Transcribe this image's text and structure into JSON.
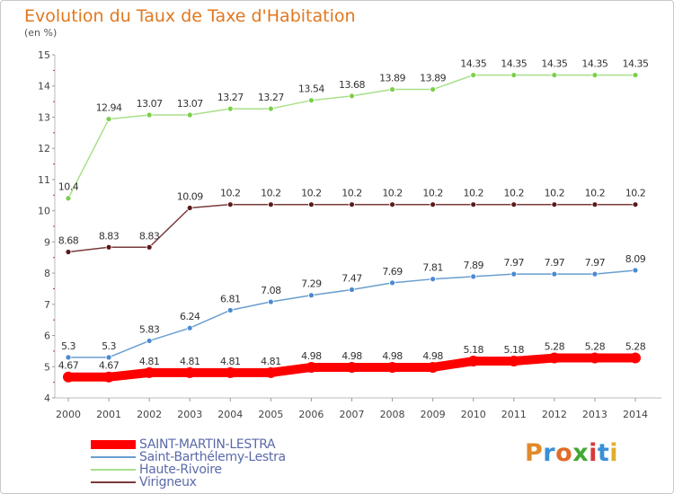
{
  "title": "Evolution du Taux de Taxe d'Habitation",
  "unit_label": "(en %)",
  "logo": {
    "text": "Proxiti",
    "colors": [
      "#e08a2a",
      "#3a8fd8",
      "#e06c2a",
      "#43a832",
      "#d83a3a",
      "#3a8fd8",
      "#e0b02a"
    ]
  },
  "chart_data": {
    "type": "line",
    "x": [
      2000,
      2001,
      2002,
      2003,
      2004,
      2005,
      2006,
      2007,
      2008,
      2009,
      2010,
      2011,
      2012,
      2013,
      2014
    ],
    "ylim": [
      4,
      15
    ],
    "yticks": [
      4,
      5,
      6,
      7,
      8,
      9,
      10,
      11,
      12,
      13,
      14,
      15
    ],
    "grid": false,
    "legend_position": "bottom-left",
    "series": [
      {
        "name": "SAINT-MARTIN-LESTRA",
        "color": "#ff0000",
        "line_width": 10,
        "marker_color": "#ff0000",
        "marker_radius": 6,
        "values": [
          4.67,
          4.67,
          4.81,
          4.81,
          4.81,
          4.81,
          4.98,
          4.98,
          4.98,
          4.98,
          5.18,
          5.18,
          5.28,
          5.28,
          5.28
        ],
        "labels": [
          "4.67",
          "4.67",
          "4.81",
          "4.81",
          "4.81",
          "4.81",
          "4.98",
          "4.98",
          "4.98",
          "4.98",
          "5.18",
          "5.18",
          "5.28",
          "5.28",
          "5.28"
        ]
      },
      {
        "name": "Saint-Barthélemy-Lestra",
        "color": "#6a9ed0",
        "line_width": 1.5,
        "marker_color": "#4a8ad0",
        "marker_radius": 3,
        "values": [
          5.3,
          5.3,
          5.83,
          6.24,
          6.81,
          7.08,
          7.29,
          7.47,
          7.69,
          7.81,
          7.89,
          7.97,
          7.97,
          7.97,
          8.09
        ],
        "labels": [
          "5.3",
          "5.3",
          "5.83",
          "6.24",
          "6.81",
          "7.08",
          "7.29",
          "7.47",
          "7.69",
          "7.81",
          "7.89",
          "7.97",
          "7.97",
          "7.97",
          "8.09"
        ]
      },
      {
        "name": "Haute-Rivoire",
        "color": "#a8e08a",
        "line_width": 1.5,
        "marker_color": "#7ad048",
        "marker_radius": 3,
        "values": [
          10.4,
          12.94,
          13.07,
          13.07,
          13.27,
          13.27,
          13.54,
          13.68,
          13.89,
          13.89,
          14.35,
          14.35,
          14.35,
          14.35,
          14.35
        ],
        "labels": [
          "10.4",
          "12.94",
          "13.07",
          "13.07",
          "13.27",
          "13.27",
          "13.54",
          "13.68",
          "13.89",
          "13.89",
          "14.35",
          "14.35",
          "14.35",
          "14.35",
          "14.35"
        ]
      },
      {
        "name": "Virigneux",
        "color": "#7a3a3a",
        "line_width": 1.5,
        "marker_color": "#5a1a1a",
        "marker_radius": 3,
        "values": [
          8.68,
          8.83,
          8.83,
          10.09,
          10.2,
          10.2,
          10.2,
          10.2,
          10.2,
          10.2,
          10.2,
          10.2,
          10.2,
          10.2,
          10.2
        ],
        "labels": [
          "8.68",
          "8.83",
          "8.83",
          "10.09",
          "10.2",
          "10.2",
          "10.2",
          "10.2",
          "10.2",
          "10.2",
          "10.2",
          "10.2",
          "10.2",
          "10.2",
          "10.2"
        ]
      }
    ]
  }
}
